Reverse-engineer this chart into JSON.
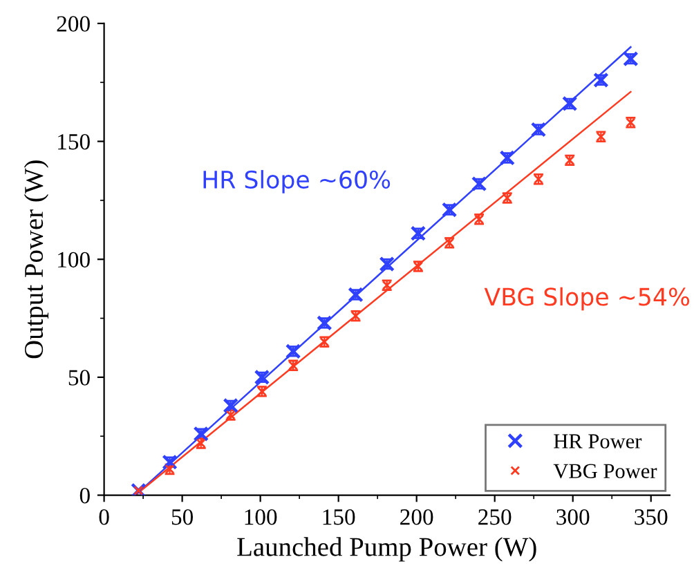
{
  "chart_data": {
    "type": "scatter",
    "xlabel": "Launched Pump Power (W)",
    "ylabel": "Output Power (W)",
    "xlim": [
      0,
      362
    ],
    "ylim": [
      0,
      200
    ],
    "xticks": [
      0,
      50,
      100,
      150,
      200,
      250,
      300,
      350
    ],
    "yticks": [
      0,
      50,
      100,
      150,
      200
    ],
    "grid": false,
    "legend": "bottom right",
    "annotations": [
      "HR Slope ~60%",
      "VBG Slope ~54%"
    ],
    "series": [
      {
        "name": "HR Power",
        "color": "#3040ff",
        "marker": "cross",
        "x": [
          22,
          42,
          62,
          81,
          101,
          121,
          141,
          161,
          181,
          201,
          221,
          240,
          258,
          278,
          298,
          318,
          337
        ],
        "values": [
          2,
          14,
          26,
          38,
          50,
          61,
          73,
          85,
          98,
          111,
          121,
          132,
          143,
          155,
          166,
          176,
          185
        ],
        "errors": [
          null,
          2,
          2,
          2,
          2,
          2,
          2,
          2,
          2,
          2,
          2,
          2,
          2,
          2,
          2,
          2,
          2
        ]
      },
      {
        "name": "VBG Power",
        "color": "#ff3a20",
        "marker": "cross",
        "x": [
          22,
          42,
          62,
          81,
          101,
          121,
          141,
          161,
          181,
          201,
          221,
          240,
          258,
          278,
          298,
          318,
          337
        ],
        "values": [
          2,
          11,
          22,
          34,
          44,
          55,
          65,
          76,
          89,
          97,
          107,
          117,
          126,
          134,
          142,
          152,
          158
        ],
        "errors": [
          null,
          2,
          2,
          2,
          2,
          2,
          2,
          2,
          2,
          2,
          2,
          2,
          2,
          2,
          2,
          2,
          2
        ]
      },
      {
        "type": "line",
        "color": "#3040ff",
        "x": [
          20,
          337
        ],
        "values": [
          0,
          190
        ],
        "line_style": "solid"
      },
      {
        "type": "line",
        "color": "#ff3a20",
        "x": [
          20,
          337
        ],
        "values": [
          0,
          171
        ],
        "line_style": "solid"
      }
    ]
  }
}
